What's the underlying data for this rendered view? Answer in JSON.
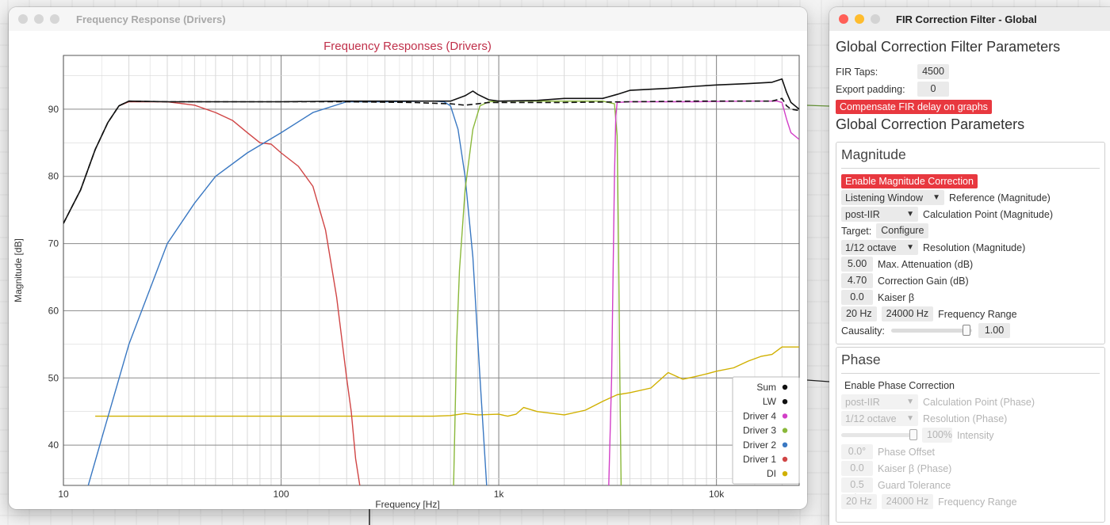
{
  "freq_window": {
    "title": "Frequency Response (Drivers)"
  },
  "fir_window": {
    "title": "FIR Correction Filter - Global",
    "heading_filter": "Global Correction Filter Parameters",
    "fir_taps_label": "FIR Taps:",
    "fir_taps_value": "4500",
    "export_padding_label": "Export padding:",
    "export_padding_value": "0",
    "compensate_label": "Compensate FIR delay on graphs",
    "heading_params": "Global Correction Parameters",
    "magnitude": {
      "title": "Magnitude",
      "enable_label": "Enable Magnitude Correction",
      "reference_value": "Listening Window",
      "reference_label": "Reference (Magnitude)",
      "calc_point_value": "post-IIR",
      "calc_point_label": "Calculation Point (Magnitude)",
      "target_label": "Target:",
      "configure_label": "Configure",
      "resolution_value": "1/12 octave",
      "resolution_label": "Resolution (Magnitude)",
      "max_att_value": "5.00",
      "max_att_label": "Max. Attenuation (dB)",
      "gain_value": "4.70",
      "gain_label": "Correction Gain (dB)",
      "kaiser_value": "0.0",
      "kaiser_label": "Kaiser β",
      "freq_low": "20 Hz",
      "freq_high": "24000 Hz",
      "freq_label": "Frequency Range",
      "causality_label": "Causality:",
      "causality_value": "1.00",
      "causality_level": 0.98
    },
    "phase": {
      "title": "Phase",
      "enable_label": "Enable Phase Correction",
      "calc_point_value": "post-IIR",
      "calc_point_label": "Calculation Point (Phase)",
      "resolution_value": "1/12 octave",
      "resolution_label": "Resolution (Phase)",
      "intensity_value": "100%",
      "intensity_label": "Intensity",
      "intensity_level": 1.0,
      "offset_value": "0.0°",
      "offset_label": "Phase Offset",
      "kaiser_value": "0.0",
      "kaiser_label": "Kaiser β (Phase)",
      "guard_value": "0.5 dB",
      "guard_label": "Guard Tolerance",
      "freq_low": "20 Hz",
      "freq_high": "24000 Hz",
      "freq_label": "Frequency Range"
    }
  },
  "chart_data": {
    "type": "line",
    "title": "Frequency Responses (Drivers)",
    "xlabel": "Frequency [Hz]",
    "ylabel": "Magnitude [dB]",
    "xscale": "log",
    "xlim": [
      10,
      24000
    ],
    "ylim": [
      34,
      98
    ],
    "x_ticks": [
      "10",
      "100",
      "1k",
      "10k"
    ],
    "y_ticks": [
      "40",
      "50",
      "60",
      "70",
      "80",
      "90"
    ],
    "grid": true,
    "legend_position": "bottom-right",
    "colors": {
      "title": "#c0304a",
      "sum": "#111111",
      "lw": "#111111",
      "driver4": "#d23fc7",
      "driver3": "#8ab83a",
      "driver2": "#3a78c2",
      "driver1": "#d04545",
      "di": "#d0b000"
    },
    "series": [
      {
        "name": "Sum",
        "key": "sum",
        "dash": false,
        "x": [
          10,
          12,
          14,
          16,
          18,
          20,
          30,
          50,
          100,
          200,
          400,
          600,
          700,
          760,
          800,
          900,
          1000,
          1500,
          2000,
          3000,
          3500,
          4000,
          6000,
          8000,
          10000,
          14000,
          18000,
          20000,
          21000,
          22000,
          24000
        ],
        "y": [
          73,
          78,
          84,
          88,
          90.5,
          91.2,
          91.1,
          91.1,
          91.1,
          91.2,
          91.2,
          91.2,
          92,
          92.7,
          92.2,
          91.4,
          91.2,
          91.3,
          91.6,
          91.6,
          92.2,
          92.8,
          93.1,
          93.4,
          93.6,
          93.8,
          94.0,
          94.5,
          92.5,
          91.0,
          90.0
        ]
      },
      {
        "name": "LW",
        "key": "lw",
        "dash": true,
        "x": [
          10,
          12,
          14,
          16,
          18,
          20,
          30,
          50,
          100,
          200,
          400,
          600,
          700,
          800,
          900,
          1000,
          2000,
          4000,
          8000,
          14000,
          18000,
          20000,
          21000,
          22000,
          24000
        ],
        "y": [
          73,
          78,
          84,
          88,
          90.5,
          91.2,
          91.1,
          91.1,
          91.1,
          91.1,
          91.0,
          90.8,
          90.6,
          90.8,
          91.0,
          91.0,
          91.0,
          91.1,
          91.2,
          91.2,
          91.2,
          91.6,
          90.5,
          90.0,
          89.8
        ]
      },
      {
        "name": "Driver 4",
        "key": "driver4",
        "dash": false,
        "x": [
          3200,
          3300,
          3400,
          3450,
          3500,
          4000,
          8000,
          14000,
          19000,
          20000,
          21000,
          22000,
          24000
        ],
        "y": [
          34,
          50,
          80,
          89,
          91,
          91.1,
          91.1,
          91.2,
          91.2,
          91.0,
          88.5,
          86.5,
          85.5
        ]
      },
      {
        "name": "Driver 3",
        "key": "driver3",
        "dash": false,
        "x": [
          620,
          640,
          660,
          700,
          760,
          820,
          900,
          1000,
          2000,
          3000,
          3400,
          3500,
          3550,
          3600,
          3650
        ],
        "y": [
          34,
          55,
          66,
          78,
          87,
          90.5,
          91.1,
          91.2,
          91.2,
          91.2,
          90.8,
          86,
          70,
          50,
          34
        ]
      },
      {
        "name": "Driver 2",
        "key": "driver2",
        "dash": false,
        "x": [
          13,
          15,
          20,
          30,
          40,
          50,
          70,
          100,
          140,
          200,
          300,
          500,
          560,
          600,
          650,
          700,
          760,
          820,
          880
        ],
        "y": [
          34,
          41,
          55,
          70,
          76,
          80,
          83.5,
          86.5,
          89.5,
          91.1,
          91.1,
          91.2,
          91.1,
          90.5,
          87,
          80,
          68,
          50,
          34
        ]
      },
      {
        "name": "Driver 1",
        "key": "driver1",
        "dash": false,
        "x": [
          18,
          20,
          30,
          40,
          50,
          60,
          70,
          80,
          90,
          100,
          120,
          140,
          160,
          180,
          200,
          210,
          220,
          230
        ],
        "y": [
          90.5,
          91.1,
          91.1,
          90.6,
          89.5,
          88.3,
          86.5,
          85,
          84.8,
          83.5,
          81.5,
          78.5,
          72,
          62,
          50,
          45,
          38,
          34
        ]
      },
      {
        "name": "DI",
        "key": "di",
        "dash": false,
        "x": [
          14,
          100,
          300,
          500,
          600,
          700,
          800,
          1000,
          1100,
          1200,
          1300,
          1500,
          2000,
          2500,
          3000,
          3500,
          4000,
          5000,
          6000,
          7000,
          8000,
          9000,
          10000,
          12000,
          14000,
          16000,
          18000,
          20000,
          24000
        ],
        "y": [
          44.3,
          44.3,
          44.3,
          44.3,
          44.4,
          44.7,
          44.5,
          44.6,
          44.3,
          44.6,
          45.6,
          45.0,
          44.5,
          45.2,
          46.5,
          47.5,
          47.8,
          48.5,
          50.8,
          49.8,
          50.2,
          50.6,
          51.0,
          51.5,
          52.5,
          53.2,
          53.5,
          54.6,
          54.6
        ]
      }
    ],
    "legend_order": [
      "Sum",
      "LW",
      "Driver 4",
      "Driver 3",
      "Driver 2",
      "Driver 1",
      "DI"
    ]
  }
}
